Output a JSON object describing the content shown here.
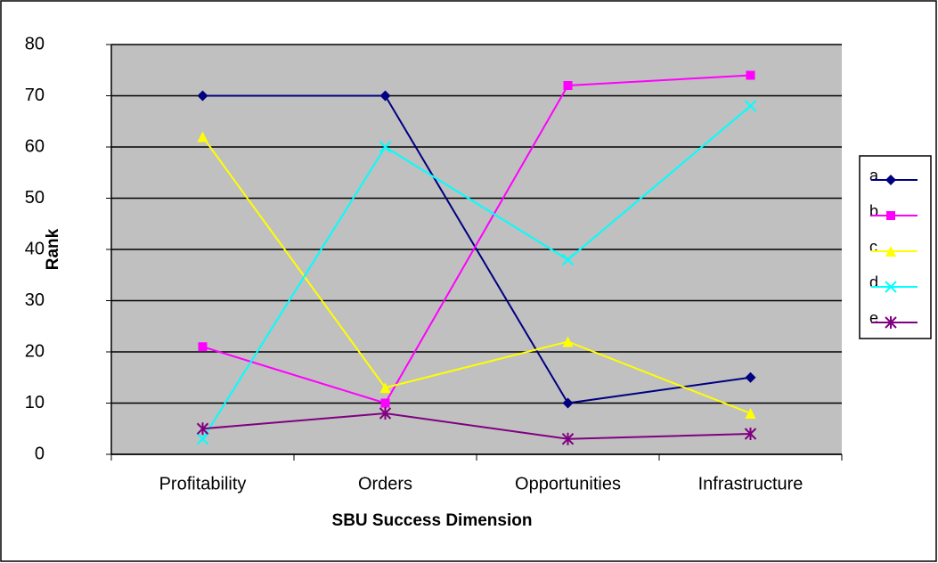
{
  "chart_data": {
    "type": "line",
    "x_label": "SBU Success Dimension",
    "y_label": "Rank",
    "categories": [
      "Profitability",
      "Orders",
      "Opportunities",
      "Infrastructure"
    ],
    "series": [
      {
        "name": "a",
        "color": "#000080",
        "marker": "diamond",
        "values": [
          70,
          70,
          10,
          15
        ]
      },
      {
        "name": "b",
        "color": "#ff00ff",
        "marker": "square",
        "values": [
          21,
          10,
          72,
          74
        ]
      },
      {
        "name": "c",
        "color": "#ffff00",
        "marker": "triangle",
        "values": [
          62,
          13,
          22,
          8
        ]
      },
      {
        "name": "d",
        "color": "#00ffff",
        "marker": "x",
        "values": [
          3,
          60,
          38,
          68
        ]
      },
      {
        "name": "e",
        "color": "#800080",
        "marker": "star",
        "values": [
          5,
          8,
          3,
          4
        ]
      }
    ],
    "ylim": [
      0,
      80
    ],
    "yticks": [
      0,
      10,
      20,
      30,
      40,
      50,
      60,
      70,
      80
    ],
    "grid": true,
    "plot_background": "#c0c0c0",
    "legend": "right"
  }
}
